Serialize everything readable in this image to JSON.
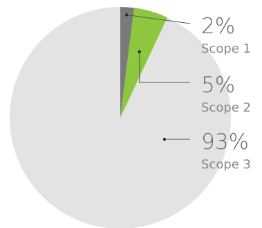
{
  "chart_data": {
    "type": "pie",
    "slices": [
      {
        "label": "Scope 1",
        "value": 2,
        "display": "2%",
        "color": "#7a7a7a"
      },
      {
        "label": "Scope 2",
        "value": 5,
        "display": "5%",
        "color": "#8dc63f"
      },
      {
        "label": "Scope 3",
        "value": 93,
        "display": "93%",
        "color": "#e3e3e3"
      }
    ],
    "legend": "right",
    "title": ""
  },
  "colors": {
    "leader_line": "#555555",
    "percent_text": "#666666",
    "label_text": "#888888"
  }
}
